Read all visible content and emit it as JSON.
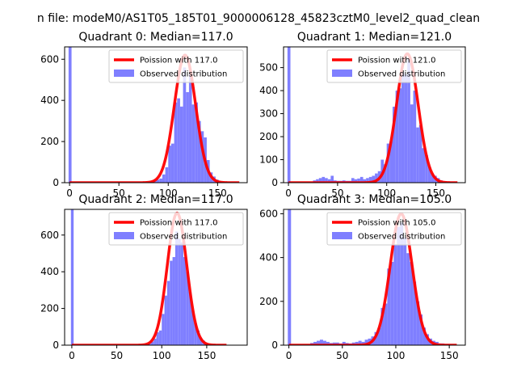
{
  "figure": {
    "suptitle": "n file: modeM0/AS1T05_185T01_9000006128_45823cztM0_level2_quad_clean"
  },
  "colors": {
    "hist": "#7f7fff",
    "fit": "#ff0000",
    "axes": "#000000"
  },
  "chart_data": [
    {
      "type": "bar",
      "title": "Quadrant 0: Median=117.0",
      "xlim": [
        -5,
        180
      ],
      "ylim": [
        0,
        660
      ],
      "xticks": [
        0,
        50,
        100,
        150
      ],
      "yticks": [
        0,
        200,
        400,
        600
      ],
      "legend_position": "top-right",
      "series": [
        {
          "name": "Poission with 117.0",
          "kind": "line",
          "mean": 117.0,
          "peak": 620
        },
        {
          "name": "Observed distribution",
          "kind": "hist",
          "bins": [
            {
              "x0": -1,
              "x1": 2,
              "y": 660
            },
            {
              "x0": 2,
              "x1": 80,
              "y": 2
            },
            {
              "x0": 80,
              "x1": 85,
              "y": 5
            },
            {
              "x0": 85,
              "x1": 88,
              "y": 10
            },
            {
              "x0": 88,
              "x1": 91,
              "y": 15
            },
            {
              "x0": 91,
              "x1": 94,
              "y": 20
            },
            {
              "x0": 94,
              "x1": 97,
              "y": 40
            },
            {
              "x0": 97,
              "x1": 100,
              "y": 75
            },
            {
              "x0": 100,
              "x1": 103,
              "y": 180
            },
            {
              "x0": 103,
              "x1": 106,
              "y": 190
            },
            {
              "x0": 106,
              "x1": 109,
              "y": 390
            },
            {
              "x0": 109,
              "x1": 112,
              "y": 410
            },
            {
              "x0": 112,
              "x1": 115,
              "y": 370
            },
            {
              "x0": 115,
              "x1": 118,
              "y": 560
            },
            {
              "x0": 118,
              "x1": 121,
              "y": 440
            },
            {
              "x0": 121,
              "x1": 124,
              "y": 530
            },
            {
              "x0": 124,
              "x1": 127,
              "y": 380
            },
            {
              "x0": 127,
              "x1": 130,
              "y": 390
            },
            {
              "x0": 130,
              "x1": 133,
              "y": 300
            },
            {
              "x0": 133,
              "x1": 136,
              "y": 250
            },
            {
              "x0": 136,
              "x1": 139,
              "y": 220
            },
            {
              "x0": 139,
              "x1": 142,
              "y": 110
            },
            {
              "x0": 142,
              "x1": 145,
              "y": 50
            },
            {
              "x0": 145,
              "x1": 148,
              "y": 30
            },
            {
              "x0": 148,
              "x1": 151,
              "y": 15
            },
            {
              "x0": 151,
              "x1": 154,
              "y": 8
            },
            {
              "x0": 154,
              "x1": 160,
              "y": 3
            }
          ]
        }
      ]
    },
    {
      "type": "bar",
      "title": "Quadrant 1: Median=121.0",
      "xlim": [
        -5,
        180
      ],
      "ylim": [
        0,
        590
      ],
      "xticks": [
        0,
        50,
        100,
        150
      ],
      "yticks": [
        0,
        100,
        200,
        300,
        400,
        500
      ],
      "legend_position": "top-right",
      "series": [
        {
          "name": "Poission with 121.0",
          "kind": "line",
          "mean": 121.0,
          "peak": 560
        },
        {
          "name": "Observed distribution",
          "kind": "hist",
          "bins": [
            {
              "x0": -1,
              "x1": 2,
              "y": 590
            },
            {
              "x0": 25,
              "x1": 28,
              "y": 10
            },
            {
              "x0": 28,
              "x1": 31,
              "y": 15
            },
            {
              "x0": 31,
              "x1": 34,
              "y": 20
            },
            {
              "x0": 34,
              "x1": 37,
              "y": 25
            },
            {
              "x0": 37,
              "x1": 40,
              "y": 20
            },
            {
              "x0": 40,
              "x1": 43,
              "y": 15
            },
            {
              "x0": 43,
              "x1": 46,
              "y": 30
            },
            {
              "x0": 46,
              "x1": 49,
              "y": 10
            },
            {
              "x0": 49,
              "x1": 55,
              "y": 8
            },
            {
              "x0": 55,
              "x1": 58,
              "y": 10
            },
            {
              "x0": 58,
              "x1": 64,
              "y": 8
            },
            {
              "x0": 64,
              "x1": 67,
              "y": 20
            },
            {
              "x0": 67,
              "x1": 70,
              "y": 15
            },
            {
              "x0": 70,
              "x1": 73,
              "y": 18
            },
            {
              "x0": 73,
              "x1": 76,
              "y": 25
            },
            {
              "x0": 76,
              "x1": 79,
              "y": 15
            },
            {
              "x0": 79,
              "x1": 82,
              "y": 20
            },
            {
              "x0": 82,
              "x1": 85,
              "y": 25
            },
            {
              "x0": 85,
              "x1": 88,
              "y": 30
            },
            {
              "x0": 88,
              "x1": 91,
              "y": 40
            },
            {
              "x0": 91,
              "x1": 94,
              "y": 50
            },
            {
              "x0": 94,
              "x1": 97,
              "y": 100
            },
            {
              "x0": 97,
              "x1": 100,
              "y": 80
            },
            {
              "x0": 100,
              "x1": 103,
              "y": 170
            },
            {
              "x0": 103,
              "x1": 106,
              "y": 180
            },
            {
              "x0": 106,
              "x1": 109,
              "y": 330
            },
            {
              "x0": 109,
              "x1": 112,
              "y": 400
            },
            {
              "x0": 112,
              "x1": 115,
              "y": 410
            },
            {
              "x0": 115,
              "x1": 118,
              "y": 480
            },
            {
              "x0": 118,
              "x1": 121,
              "y": 470
            },
            {
              "x0": 121,
              "x1": 124,
              "y": 540
            },
            {
              "x0": 124,
              "x1": 127,
              "y": 340
            },
            {
              "x0": 127,
              "x1": 130,
              "y": 400
            },
            {
              "x0": 130,
              "x1": 133,
              "y": 240
            },
            {
              "x0": 133,
              "x1": 136,
              "y": 250
            },
            {
              "x0": 136,
              "x1": 139,
              "y": 150
            },
            {
              "x0": 139,
              "x1": 142,
              "y": 120
            },
            {
              "x0": 142,
              "x1": 145,
              "y": 70
            },
            {
              "x0": 145,
              "x1": 148,
              "y": 40
            },
            {
              "x0": 148,
              "x1": 151,
              "y": 30
            },
            {
              "x0": 151,
              "x1": 154,
              "y": 20
            },
            {
              "x0": 154,
              "x1": 157,
              "y": 10
            },
            {
              "x0": 157,
              "x1": 165,
              "y": 5
            }
          ]
        }
      ]
    },
    {
      "type": "bar",
      "title": "Quadrant 2: Median=117.0",
      "xlim": [
        -8,
        195
      ],
      "ylim": [
        0,
        740
      ],
      "xticks": [
        0,
        50,
        100,
        150
      ],
      "yticks": [
        0,
        200,
        400,
        600
      ],
      "legend_position": "top-right",
      "series": [
        {
          "name": "Poission with 117.0",
          "kind": "line",
          "mean": 117.0,
          "peak": 720
        },
        {
          "name": "Observed distribution",
          "kind": "hist",
          "bins": [
            {
              "x0": -1,
              "x1": 2,
              "y": 740
            },
            {
              "x0": 2,
              "x1": 75,
              "y": 2
            },
            {
              "x0": 75,
              "x1": 85,
              "y": 4
            },
            {
              "x0": 85,
              "x1": 88,
              "y": 8
            },
            {
              "x0": 88,
              "x1": 91,
              "y": 20
            },
            {
              "x0": 91,
              "x1": 94,
              "y": 35
            },
            {
              "x0": 94,
              "x1": 97,
              "y": 70
            },
            {
              "x0": 97,
              "x1": 100,
              "y": 80
            },
            {
              "x0": 100,
              "x1": 103,
              "y": 170
            },
            {
              "x0": 103,
              "x1": 106,
              "y": 270
            },
            {
              "x0": 106,
              "x1": 109,
              "y": 350
            },
            {
              "x0": 109,
              "x1": 112,
              "y": 460
            },
            {
              "x0": 112,
              "x1": 115,
              "y": 480
            },
            {
              "x0": 115,
              "x1": 118,
              "y": 620
            },
            {
              "x0": 118,
              "x1": 121,
              "y": 580
            },
            {
              "x0": 121,
              "x1": 124,
              "y": 560
            },
            {
              "x0": 124,
              "x1": 127,
              "y": 480
            },
            {
              "x0": 127,
              "x1": 130,
              "y": 400
            },
            {
              "x0": 130,
              "x1": 133,
              "y": 290
            },
            {
              "x0": 133,
              "x1": 136,
              "y": 190
            },
            {
              "x0": 136,
              "x1": 139,
              "y": 120
            },
            {
              "x0": 139,
              "x1": 142,
              "y": 80
            },
            {
              "x0": 142,
              "x1": 145,
              "y": 40
            },
            {
              "x0": 145,
              "x1": 148,
              "y": 25
            },
            {
              "x0": 148,
              "x1": 151,
              "y": 10
            },
            {
              "x0": 151,
              "x1": 160,
              "y": 4
            }
          ]
        }
      ]
    },
    {
      "type": "bar",
      "title": "Quadrant 3: Median=105.0",
      "xlim": [
        -5,
        165
      ],
      "ylim": [
        0,
        620
      ],
      "xticks": [
        0,
        50,
        100,
        150
      ],
      "yticks": [
        0,
        200,
        400,
        600
      ],
      "legend_position": "top-right",
      "series": [
        {
          "name": "Poission with 105.0",
          "kind": "line",
          "mean": 105.0,
          "peak": 600
        },
        {
          "name": "Observed distribution",
          "kind": "hist",
          "bins": [
            {
              "x0": -1,
              "x1": 2,
              "y": 620
            },
            {
              "x0": 20,
              "x1": 23,
              "y": 10
            },
            {
              "x0": 23,
              "x1": 26,
              "y": 15
            },
            {
              "x0": 26,
              "x1": 29,
              "y": 20
            },
            {
              "x0": 29,
              "x1": 32,
              "y": 25
            },
            {
              "x0": 32,
              "x1": 35,
              "y": 20
            },
            {
              "x0": 35,
              "x1": 38,
              "y": 15
            },
            {
              "x0": 38,
              "x1": 41,
              "y": 10
            },
            {
              "x0": 41,
              "x1": 47,
              "y": 12
            },
            {
              "x0": 47,
              "x1": 50,
              "y": 8
            },
            {
              "x0": 50,
              "x1": 53,
              "y": 15
            },
            {
              "x0": 53,
              "x1": 56,
              "y": 10
            },
            {
              "x0": 56,
              "x1": 59,
              "y": 8
            },
            {
              "x0": 59,
              "x1": 62,
              "y": 12
            },
            {
              "x0": 62,
              "x1": 65,
              "y": 15
            },
            {
              "x0": 65,
              "x1": 68,
              "y": 20
            },
            {
              "x0": 68,
              "x1": 71,
              "y": 15
            },
            {
              "x0": 71,
              "x1": 74,
              "y": 25
            },
            {
              "x0": 74,
              "x1": 77,
              "y": 30
            },
            {
              "x0": 77,
              "x1": 80,
              "y": 40
            },
            {
              "x0": 80,
              "x1": 83,
              "y": 60
            },
            {
              "x0": 83,
              "x1": 86,
              "y": 80
            },
            {
              "x0": 86,
              "x1": 89,
              "y": 170
            },
            {
              "x0": 89,
              "x1": 92,
              "y": 190
            },
            {
              "x0": 92,
              "x1": 95,
              "y": 350
            },
            {
              "x0": 95,
              "x1": 98,
              "y": 380
            },
            {
              "x0": 98,
              "x1": 101,
              "y": 460
            },
            {
              "x0": 101,
              "x1": 104,
              "y": 540
            },
            {
              "x0": 104,
              "x1": 107,
              "y": 560
            },
            {
              "x0": 107,
              "x1": 110,
              "y": 490
            },
            {
              "x0": 110,
              "x1": 113,
              "y": 420
            },
            {
              "x0": 113,
              "x1": 116,
              "y": 380
            },
            {
              "x0": 116,
              "x1": 119,
              "y": 290
            },
            {
              "x0": 119,
              "x1": 122,
              "y": 200
            },
            {
              "x0": 122,
              "x1": 125,
              "y": 140
            },
            {
              "x0": 125,
              "x1": 128,
              "y": 80
            },
            {
              "x0": 128,
              "x1": 131,
              "y": 50
            },
            {
              "x0": 131,
              "x1": 134,
              "y": 30
            },
            {
              "x0": 134,
              "x1": 137,
              "y": 20
            },
            {
              "x0": 137,
              "x1": 140,
              "y": 15
            },
            {
              "x0": 140,
              "x1": 145,
              "y": 8
            },
            {
              "x0": 145,
              "x1": 150,
              "y": 5
            }
          ]
        }
      ]
    }
  ]
}
